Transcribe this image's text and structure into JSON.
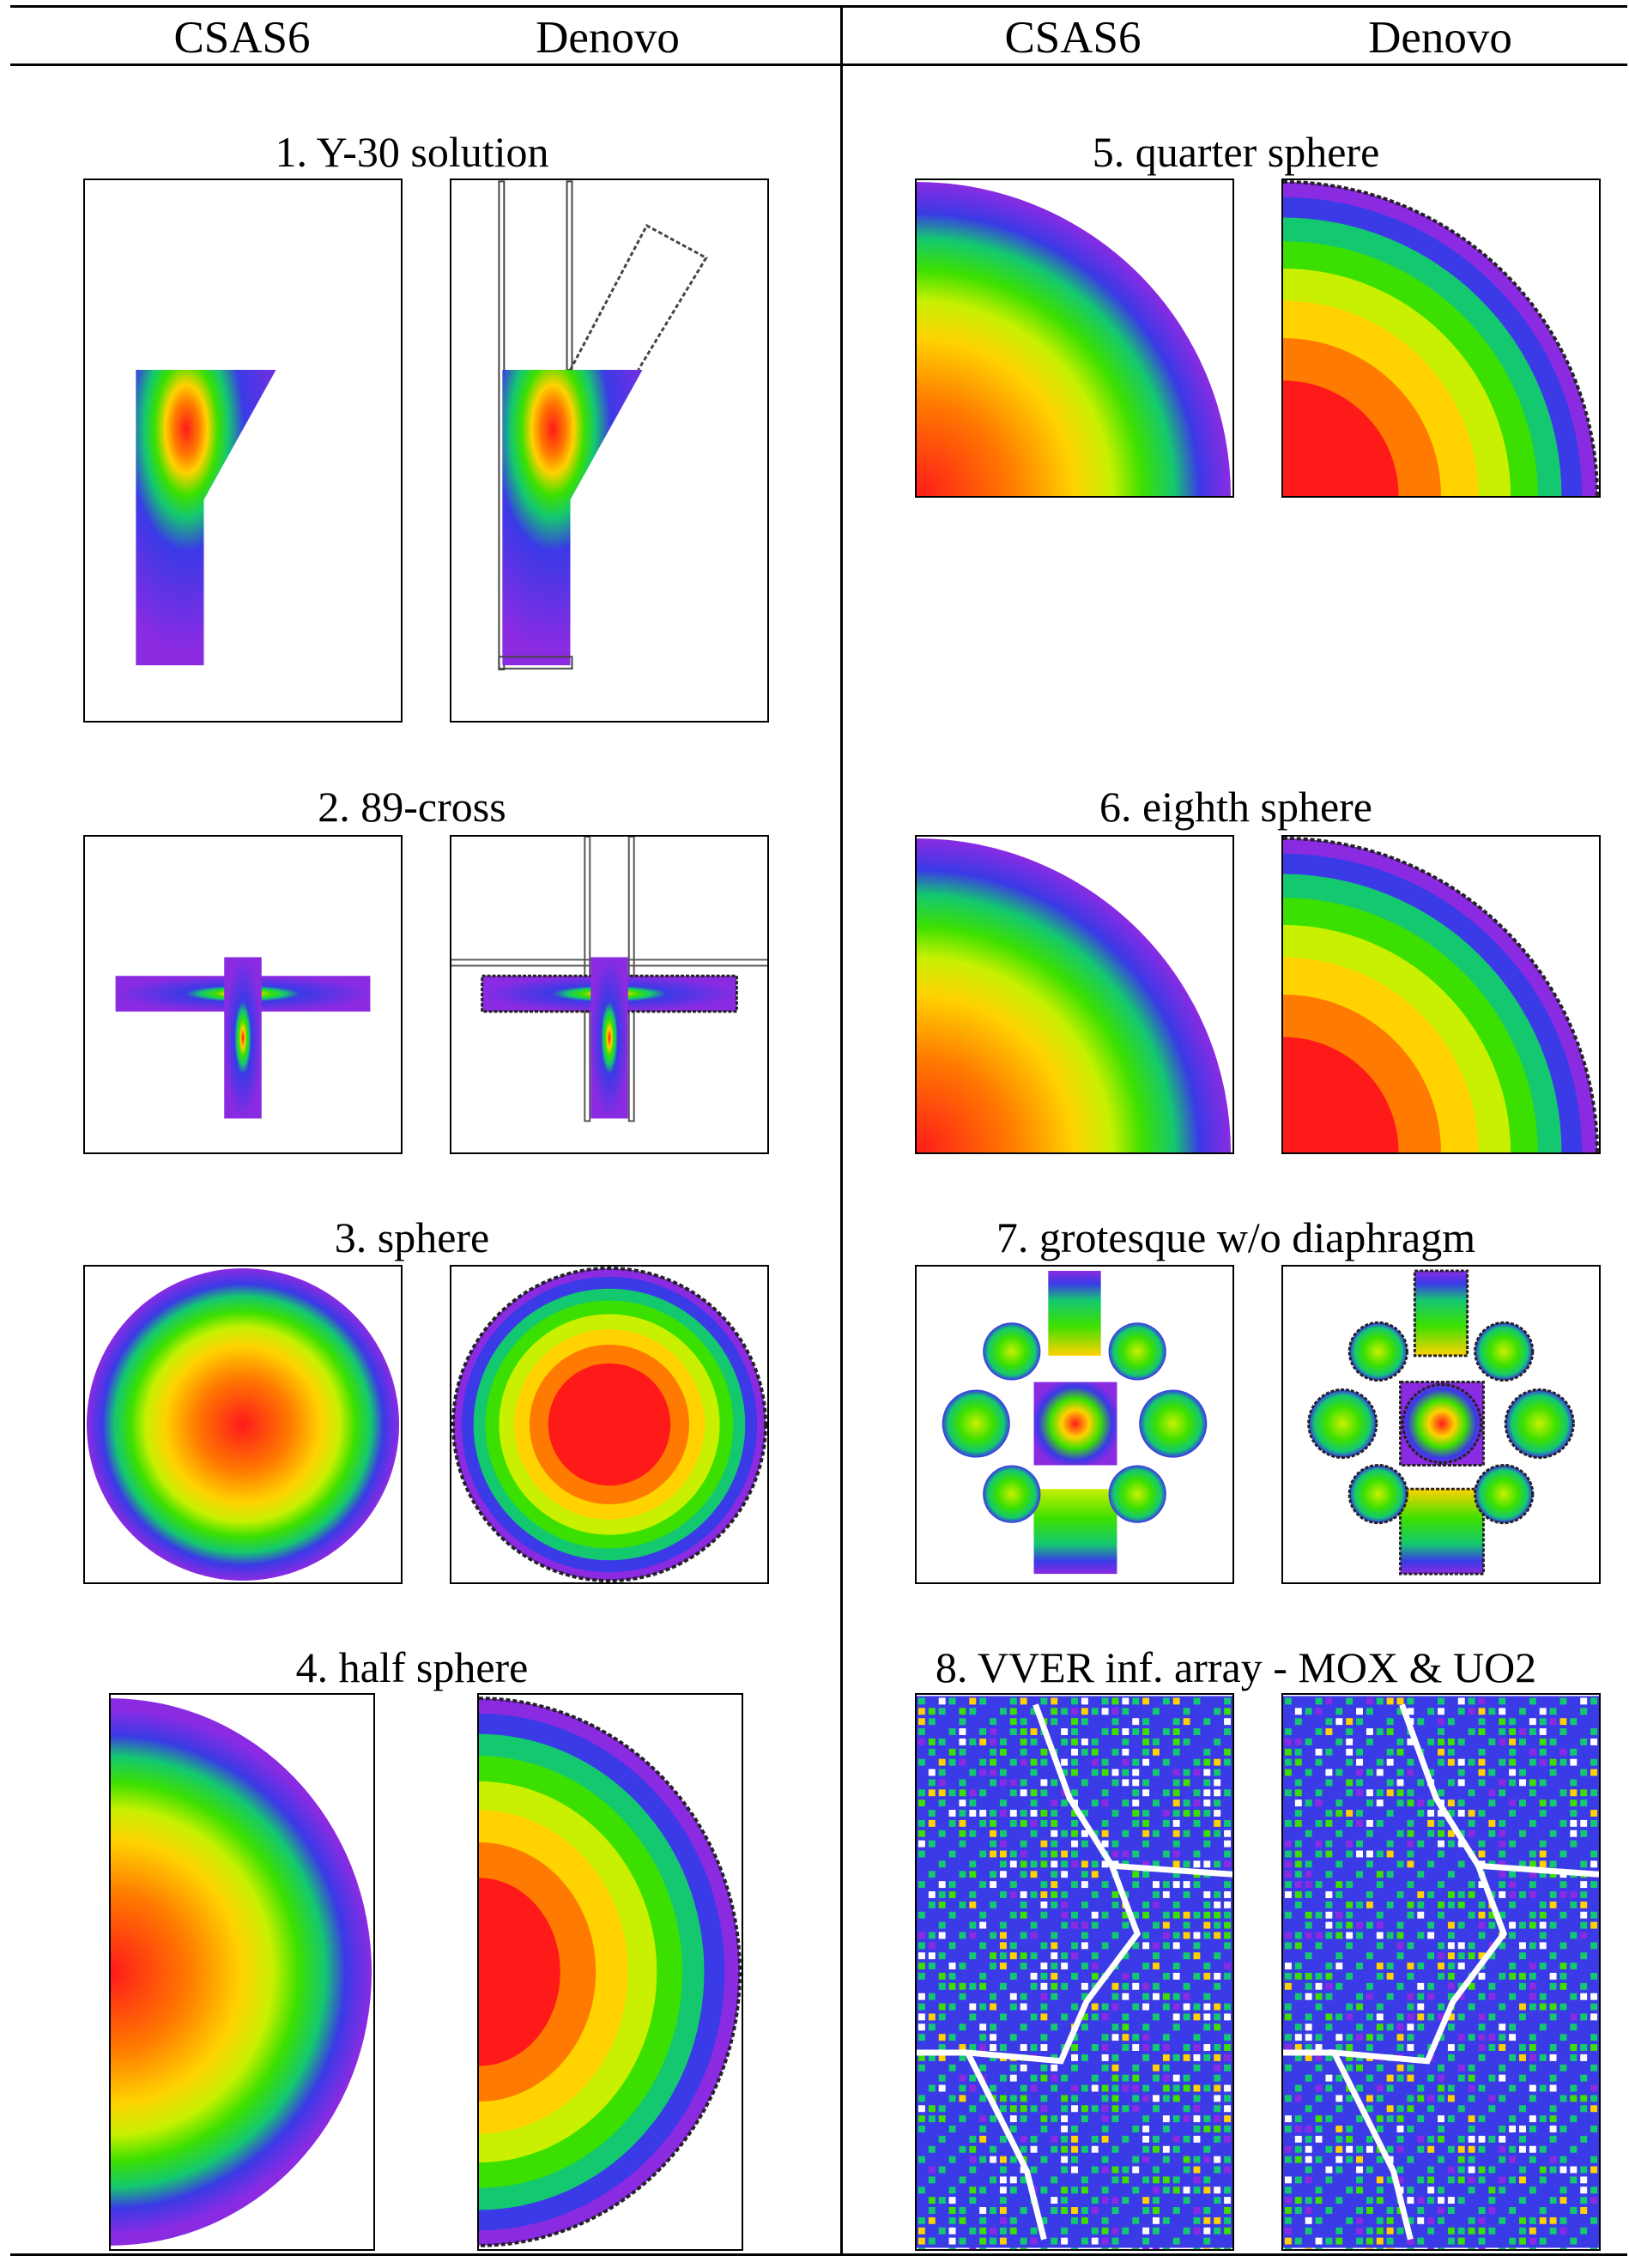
{
  "columns": {
    "left": {
      "a": "CSAS6",
      "b": "Denovo"
    },
    "right": {
      "a": "CSAS6",
      "b": "Denovo"
    }
  },
  "cases": [
    {
      "id": "c1",
      "caption": "1. Y-30 solution"
    },
    {
      "id": "c2",
      "caption": "2. 89-cross"
    },
    {
      "id": "c3",
      "caption": "3. sphere"
    },
    {
      "id": "c4",
      "caption": "4. half sphere"
    },
    {
      "id": "c5",
      "caption": "5. quarter sphere"
    },
    {
      "id": "c6",
      "caption": "6. eighth sphere"
    },
    {
      "id": "c7",
      "caption": "7. grotesque w/o diaphragm"
    },
    {
      "id": "c8",
      "caption": "8. VVER inf. array - MOX & UO2"
    }
  ],
  "colors": {
    "rainbow": [
      "#8a2be2",
      "#3a3ae6",
      "#1aa0e6",
      "#14c870",
      "#3ce000",
      "#c8f000",
      "#ffd200",
      "#ff7a00",
      "#ff1a1a"
    ]
  }
}
